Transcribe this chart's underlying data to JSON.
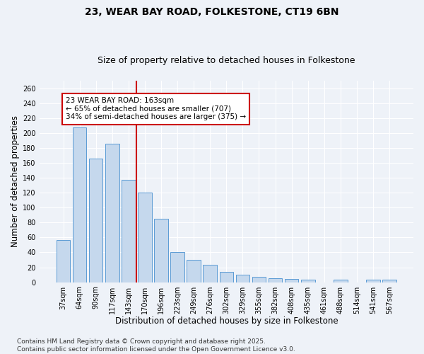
{
  "title_line1": "23, WEAR BAY ROAD, FOLKESTONE, CT19 6BN",
  "title_line2": "Size of property relative to detached houses in Folkestone",
  "xlabel": "Distribution of detached houses by size in Folkestone",
  "ylabel": "Number of detached properties",
  "categories": [
    "37sqm",
    "64sqm",
    "90sqm",
    "117sqm",
    "143sqm",
    "170sqm",
    "196sqm",
    "223sqm",
    "249sqm",
    "276sqm",
    "302sqm",
    "329sqm",
    "355sqm",
    "382sqm",
    "408sqm",
    "435sqm",
    "461sqm",
    "488sqm",
    "514sqm",
    "541sqm",
    "567sqm"
  ],
  "values": [
    57,
    207,
    166,
    186,
    137,
    120,
    85,
    40,
    30,
    23,
    14,
    10,
    7,
    5,
    4,
    3,
    0,
    3,
    0,
    3,
    3
  ],
  "bar_color": "#c5d8ed",
  "bar_edge_color": "#5b9bd5",
  "vline_x": 4.5,
  "vline_color": "#cc0000",
  "annotation_text": "23 WEAR BAY ROAD: 163sqm\n← 65% of detached houses are smaller (707)\n34% of semi-detached houses are larger (375) →",
  "annotation_box_color": "#ffffff",
  "annotation_box_edge_color": "#cc0000",
  "ylim": [
    0,
    270
  ],
  "yticks": [
    0,
    20,
    40,
    60,
    80,
    100,
    120,
    140,
    160,
    180,
    200,
    220,
    240,
    260
  ],
  "background_color": "#eef2f8",
  "grid_color": "#ffffff",
  "footer_text": "Contains HM Land Registry data © Crown copyright and database right 2025.\nContains public sector information licensed under the Open Government Licence v3.0.",
  "title_fontsize": 10,
  "subtitle_fontsize": 9,
  "tick_fontsize": 7,
  "label_fontsize": 8.5,
  "annotation_fontsize": 7.5,
  "footer_fontsize": 6.5
}
